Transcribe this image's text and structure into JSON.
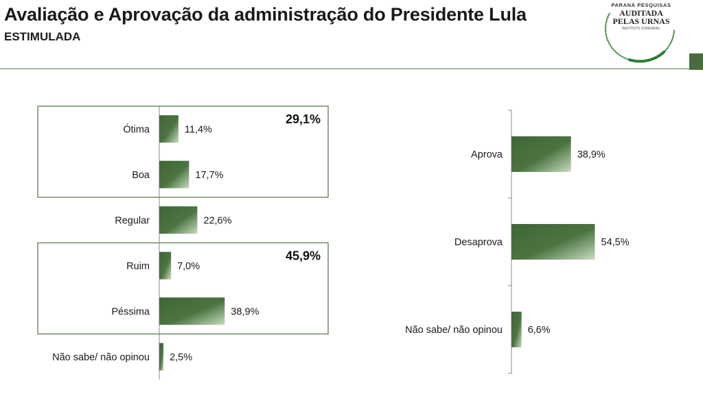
{
  "header": {
    "title": "Avaliação e Aprovação da administração do Presidente Lula",
    "subtitle": "ESTIMULADA"
  },
  "logo": {
    "line1": "PARANÁ PESQUISAS",
    "line2": "AUDITADA",
    "line3": "PELAS URNAS",
    "line4": "INSTITUTO CONFIÁVEL"
  },
  "colors": {
    "bar_dark": "#3f6636",
    "bar_light": "#c9dcc0",
    "frame": "#5b7d4f"
  },
  "chart_data": [
    {
      "type": "bar",
      "orientation": "horizontal",
      "categories": [
        "Ótima",
        "Boa",
        "Regular",
        "Ruim",
        "Péssima",
        "Não sabe/ não opinou"
      ],
      "values": [
        11.4,
        17.7,
        22.6,
        7.0,
        38.9,
        2.5
      ],
      "value_labels": [
        "11,4%",
        "17,7%",
        "22,6%",
        "7,0%",
        "38,9%",
        "2,5%"
      ],
      "groups": [
        {
          "members": [
            "Ótima",
            "Boa"
          ],
          "total_label": "29,1%"
        },
        {
          "members": [
            "Ruim",
            "Péssima"
          ],
          "total_label": "45,9%"
        }
      ],
      "xlim": [
        0,
        60
      ],
      "grid": false,
      "legend": "none"
    },
    {
      "type": "bar",
      "orientation": "horizontal",
      "categories": [
        "Aprova",
        "Desaprova",
        "Não sabe/ não opinou"
      ],
      "values": [
        38.9,
        54.5,
        6.6
      ],
      "value_labels": [
        "38,9%",
        "54,5%",
        "6,6%"
      ],
      "xlim": [
        0,
        60
      ],
      "grid": false,
      "legend": "none"
    }
  ]
}
